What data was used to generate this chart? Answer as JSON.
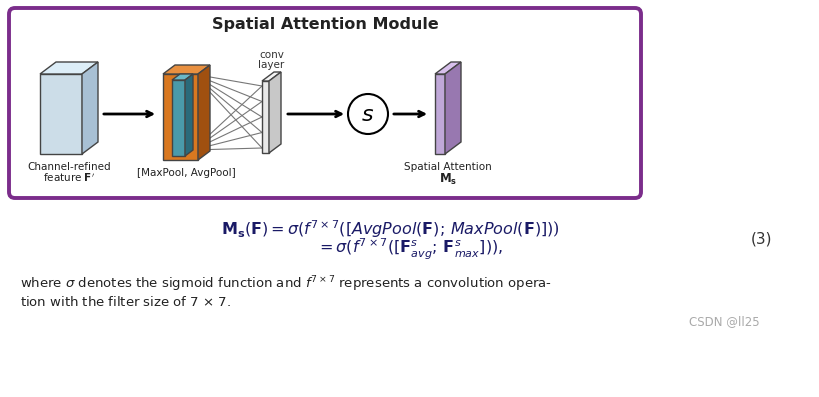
{
  "title": "Spatial Attention Module",
  "title_fontsize": 11.5,
  "bg_color": "#ffffff",
  "box_edge_color": "#7B2D8B",
  "box_fill_color": "#ffffff",
  "eq_number": "(3)",
  "watermark": "CSDN @ll25",
  "label1_line1": "Channel-refined",
  "label1_line2": "feature $\\mathbf{F^{\\prime}}$",
  "label2": "[MaxPool, AvgPool]",
  "label3_line1": "Spatial Attention",
  "label3_line2": "$\\mathbf{M_s}$",
  "conv_label_line1": "conv",
  "conv_label_line2": "layer",
  "cube1_front": "#ccdde8",
  "cube1_side": "#a8c0d4",
  "cube1_top": "#ddeef8",
  "orange_front": "#d97820",
  "orange_side": "#a05010",
  "orange_top": "#e89040",
  "teal_front": "#4a9aaa",
  "teal_side": "#2a6a7a",
  "teal_top": "#6ab8c8",
  "sheet_front": "#e8e8e8",
  "sheet_side": "#c8c8c8",
  "sheet_top": "#f4f4f4",
  "purple_front": "#c0a8d8",
  "purple_side": "#9878b0",
  "purple_top": "#d8c0ec"
}
